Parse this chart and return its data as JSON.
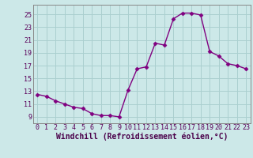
{
  "x": [
    0,
    1,
    2,
    3,
    4,
    5,
    6,
    7,
    8,
    9,
    10,
    11,
    12,
    13,
    14,
    15,
    16,
    17,
    18,
    19,
    20,
    21,
    22,
    23
  ],
  "y": [
    12.5,
    12.2,
    11.5,
    11.0,
    10.5,
    10.3,
    9.5,
    9.2,
    9.2,
    9.0,
    13.2,
    16.5,
    16.8,
    20.5,
    20.2,
    24.3,
    25.2,
    25.2,
    24.9,
    19.2,
    18.5,
    17.3,
    17.0,
    16.5
  ],
  "line_color": "#800080",
  "marker": "D",
  "marker_size": 2.5,
  "bg_color": "#cce8e8",
  "grid_color": "#aacfcf",
  "xlabel": "Windchill (Refroidissement éolien,°C)",
  "xlim": [
    -0.5,
    23.5
  ],
  "ylim": [
    8.0,
    26.5
  ],
  "yticks": [
    9,
    11,
    13,
    15,
    17,
    19,
    21,
    23,
    25
  ],
  "xticks": [
    0,
    1,
    2,
    3,
    4,
    5,
    6,
    7,
    8,
    9,
    10,
    11,
    12,
    13,
    14,
    15,
    16,
    17,
    18,
    19,
    20,
    21,
    22,
    23
  ],
  "tick_fontsize": 6,
  "label_fontsize": 7,
  "line_width": 1.0
}
